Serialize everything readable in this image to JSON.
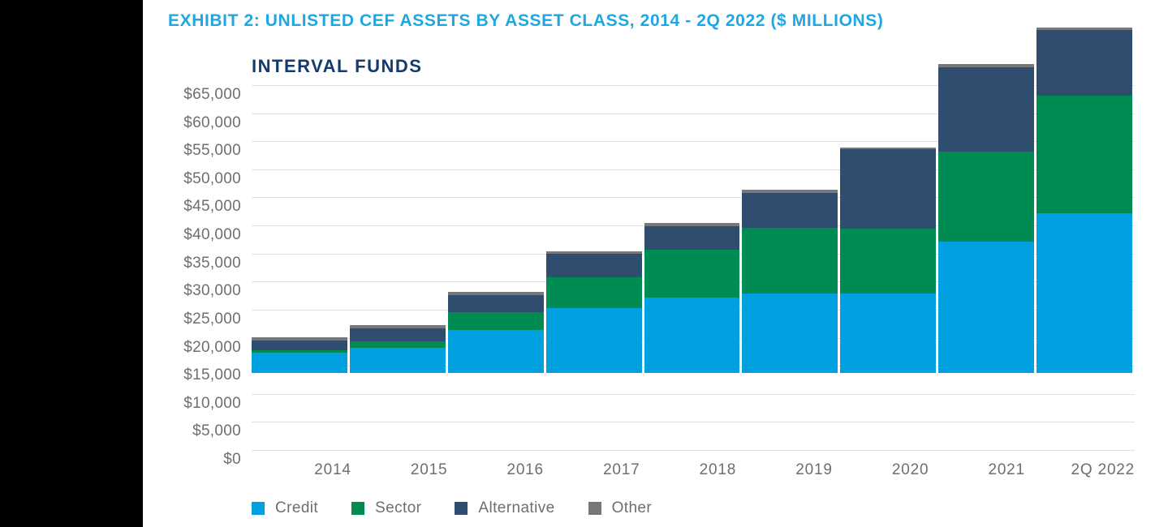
{
  "page": {
    "background_color": "#FFFFFF",
    "left_band_color": "#000000"
  },
  "header": {
    "title": "EXHIBIT 2: UNLISTED CEF ASSETS BY ASSET CLASS, 2014 - 2Q 2022 ($ MILLIONS)",
    "title_color": "#1EA7E1"
  },
  "chart": {
    "title": "INTERVAL FUNDS",
    "title_color": "#143A6E",
    "axis_text_color": "#6D6E71",
    "gridline_color": "#DFE0E2",
    "y_axis": {
      "tick_labels": [
        "$0",
        "$5,000",
        "$10,000",
        "$15,000",
        "$20,000",
        "$25,000",
        "$30,000",
        "$35,000",
        "$40,000",
        "$45,000",
        "$50,000",
        "$55,000",
        "$60,000",
        "$65,000"
      ]
    }
  },
  "chart_data": {
    "type": "bar",
    "stacked": true,
    "title": "INTERVAL FUNDS",
    "xlabel": "",
    "ylabel": "",
    "units": "$ millions",
    "ylim": [
      0,
      65000
    ],
    "ytick_step": 5000,
    "grid": true,
    "legend_position": "bottom",
    "categories": [
      "2014",
      "2015",
      "2016",
      "2017",
      "2018",
      "2019",
      "2020",
      "2021",
      "2Q 2022"
    ],
    "series": [
      {
        "name": "Credit",
        "color": "#00A0E1",
        "values": [
          3600,
          4500,
          7700,
          11500,
          13400,
          14100,
          14200,
          23400,
          28500
        ]
      },
      {
        "name": "Sector",
        "color": "#008B52",
        "values": [
          500,
          1200,
          3200,
          5600,
          8500,
          11800,
          11500,
          16000,
          20900
        ]
      },
      {
        "name": "Alternative",
        "color": "#2F4E6F",
        "values": [
          1700,
          2300,
          2900,
          4200,
          4300,
          6200,
          14100,
          15100,
          11700
        ]
      },
      {
        "name": "Other",
        "color": "#77787B",
        "values": [
          600,
          500,
          600,
          400,
          500,
          600,
          300,
          500,
          400
        ]
      }
    ],
    "totals": [
      6400,
      8500,
      14400,
      21700,
      26700,
      32700,
      40100,
      55000,
      61500
    ]
  }
}
